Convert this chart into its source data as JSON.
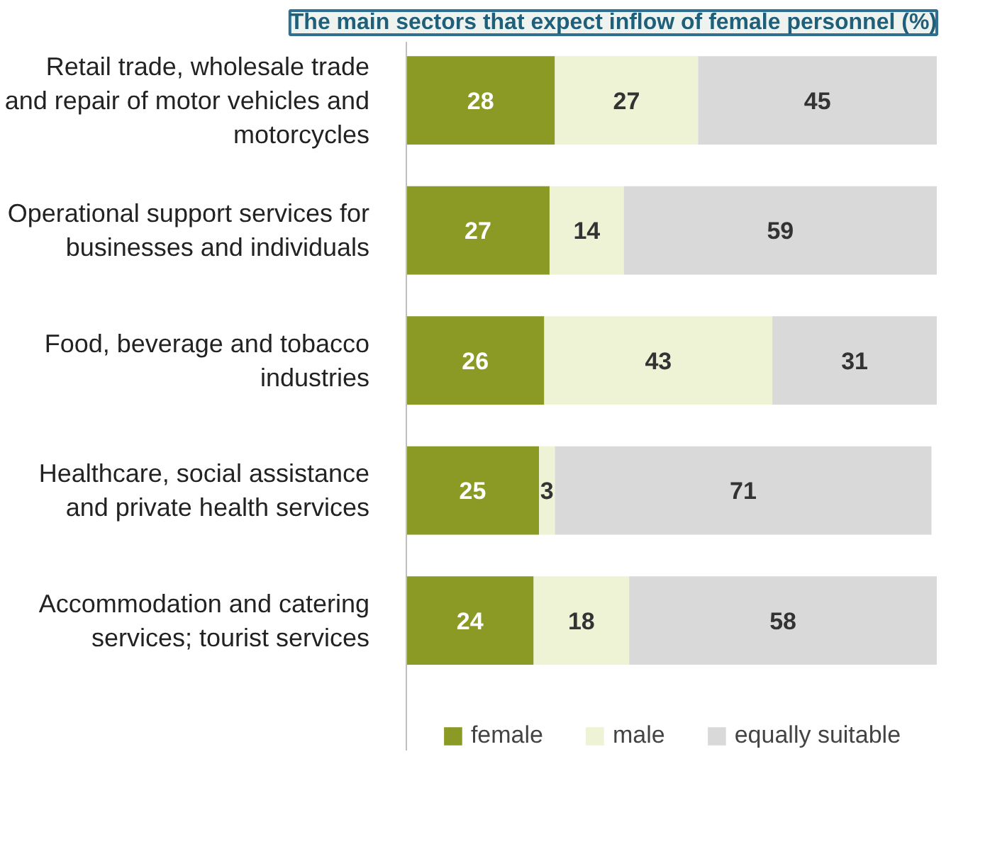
{
  "chart_data": {
    "type": "bar",
    "orientation": "horizontal",
    "stacked": true,
    "tick_labels": "y",
    "data_labels": true,
    "legend": "bottom",
    "grid": false,
    "title": "The main sectors that expect inflow of female personnel (%)",
    "categories": [
      "Retail trade, wholesale trade and repair of motor vehicles and motorcycles",
      "Operational support services for businesses and individuals",
      "Food, beverage and tobacco industries",
      "Healthcare, social assistance and private health services",
      "Accommodation and catering services; tourist services"
    ],
    "series": [
      {
        "name": "female",
        "color": "#8a9a24",
        "values": [
          28,
          27,
          26,
          25,
          24
        ]
      },
      {
        "name": "male",
        "color": "#eef3d6",
        "values": [
          27,
          14,
          43,
          3,
          18
        ]
      },
      {
        "name": "equally suitable",
        "color": "#d9d9d9",
        "values": [
          45,
          59,
          31,
          71,
          58
        ]
      }
    ]
  }
}
